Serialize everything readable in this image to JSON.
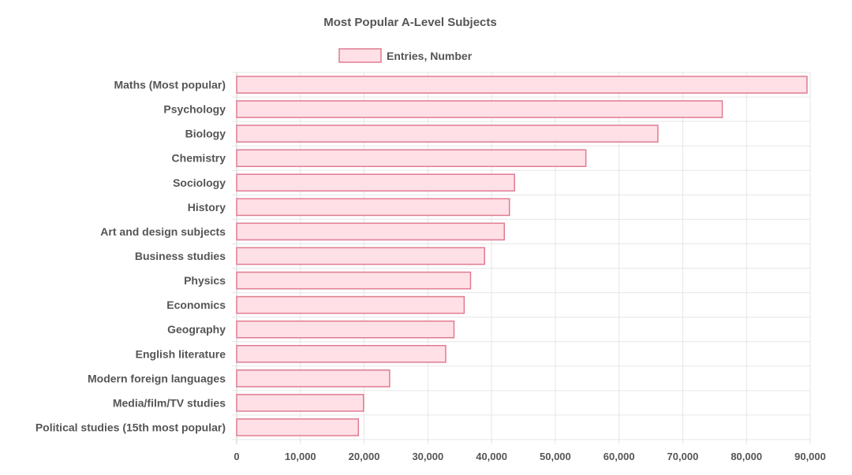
{
  "chart_data": {
    "type": "bar",
    "orientation": "horizontal",
    "title": "Most Popular A-Level Subjects",
    "legend_position": "top-center",
    "grid": true,
    "colors": {
      "bar_fill": "#ffe0e6",
      "bar_stroke": "#e07b91",
      "text": "#555555",
      "grid": "#e6e6e6"
    },
    "categories": [
      "Maths (Most popular)",
      "Psychology",
      "Biology",
      "Chemistry",
      "Sociology",
      "History",
      "Art and design subjects",
      "Business studies",
      "Physics",
      "Economics",
      "Geography",
      "English literature",
      "Modern foreign languages",
      "Media/film/TV studies",
      "Political studies (15th most popular)"
    ],
    "series": [
      {
        "name": "Entries, Number",
        "values": [
          89500,
          76200,
          66100,
          54800,
          43600,
          42800,
          42000,
          38900,
          36700,
          35700,
          34100,
          32800,
          24000,
          19900,
          19100
        ]
      }
    ],
    "xlim": [
      0,
      90000
    ],
    "xticks": [
      "0",
      "10,000",
      "20,000",
      "30,000",
      "40,000",
      "50,000",
      "60,000",
      "70,000",
      "80,000",
      "90,000"
    ]
  }
}
